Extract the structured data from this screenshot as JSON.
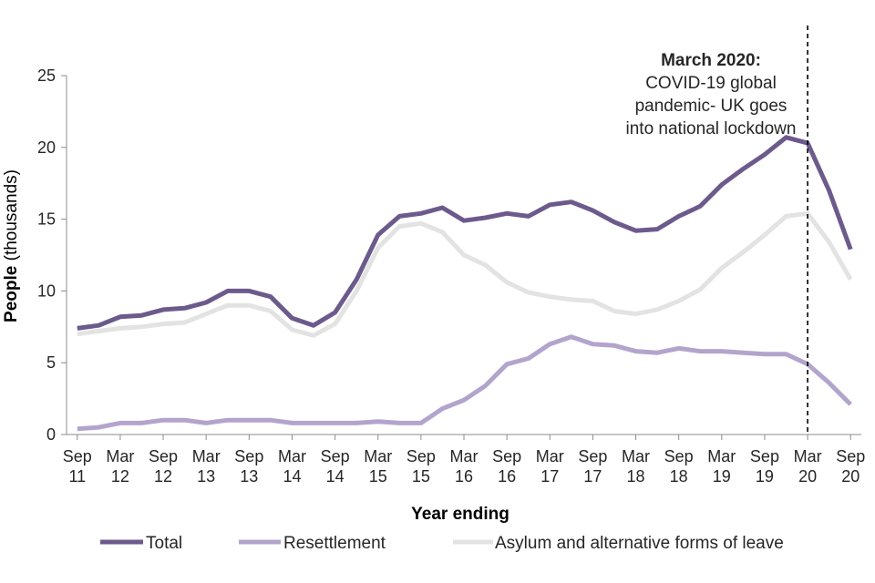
{
  "chart_data": {
    "type": "line",
    "title": "",
    "xlabel": "Year ending",
    "ylabel_bold": "People",
    "ylabel_rest": " (thousands)",
    "ylim": [
      0,
      25
    ],
    "yticks": [
      "0",
      "5",
      "10",
      "15",
      "20",
      "25"
    ],
    "x_tick_labels": [
      [
        "Sep",
        "11"
      ],
      [
        "Mar",
        "12"
      ],
      [
        "Sep",
        "12"
      ],
      [
        "Mar",
        "13"
      ],
      [
        "Sep",
        "13"
      ],
      [
        "Mar",
        "14"
      ],
      [
        "Sep",
        "14"
      ],
      [
        "Mar",
        "15"
      ],
      [
        "Sep",
        "15"
      ],
      [
        "Mar",
        "16"
      ],
      [
        "Sep",
        "16"
      ],
      [
        "Mar",
        "17"
      ],
      [
        "Sep",
        "17"
      ],
      [
        "Mar",
        "18"
      ],
      [
        "Sep",
        "18"
      ],
      [
        "Mar",
        "19"
      ],
      [
        "Sep",
        "19"
      ],
      [
        "Mar",
        "20"
      ],
      [
        "Sep",
        "20"
      ]
    ],
    "points_per_interval": 2,
    "series": [
      {
        "name": "Total",
        "color": "#6d5a8c",
        "values": [
          7.4,
          7.6,
          8.2,
          8.3,
          8.7,
          8.8,
          9.2,
          10.0,
          10.0,
          9.6,
          8.1,
          7.6,
          8.5,
          10.8,
          13.9,
          15.2,
          15.4,
          15.8,
          14.9,
          15.1,
          15.4,
          15.2,
          16.0,
          16.2,
          15.6,
          14.8,
          14.2,
          14.3,
          15.2,
          15.9,
          17.4,
          18.5,
          19.5,
          20.7,
          20.3,
          17.0,
          12.9
        ]
      },
      {
        "name": "Resettlement",
        "color": "#b3a4cd",
        "values": [
          0.4,
          0.5,
          0.8,
          0.8,
          1.0,
          1.0,
          0.8,
          1.0,
          1.0,
          1.0,
          0.8,
          0.8,
          0.8,
          0.8,
          0.9,
          0.8,
          0.8,
          1.8,
          2.4,
          3.4,
          4.9,
          5.3,
          6.3,
          6.8,
          6.3,
          6.2,
          5.8,
          5.7,
          6.0,
          5.8,
          5.8,
          5.7,
          5.6,
          5.6,
          4.9,
          3.6,
          2.1
        ]
      },
      {
        "name": "Asylum and alternative forms of leave",
        "color": "#e3e3e3",
        "values": [
          7.0,
          7.2,
          7.4,
          7.5,
          7.7,
          7.8,
          8.4,
          9.0,
          9.0,
          8.6,
          7.3,
          6.9,
          7.7,
          10.0,
          13.0,
          14.5,
          14.7,
          14.1,
          12.5,
          11.8,
          10.6,
          9.9,
          9.6,
          9.4,
          9.3,
          8.6,
          8.4,
          8.7,
          9.3,
          10.1,
          11.6,
          12.7,
          13.9,
          15.2,
          15.4,
          13.4,
          10.8
        ]
      }
    ],
    "annotation": {
      "x_index": 34,
      "heading": "March 2020:",
      "lines": [
        "COVID-19 global",
        "pandemic- UK goes",
        "into national lockdown"
      ]
    },
    "legend": {
      "position": "bottom",
      "entries": [
        "Total",
        "Resettlement",
        "Asylum and alternative forms of leave"
      ]
    }
  }
}
